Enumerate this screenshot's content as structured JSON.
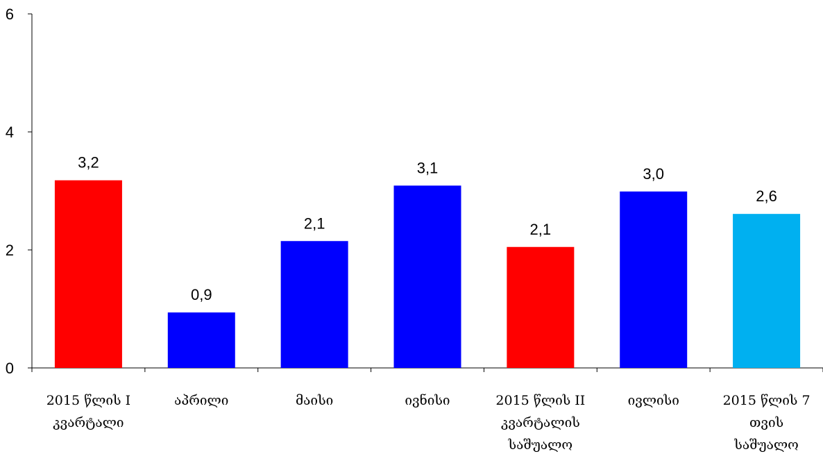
{
  "chart_data": {
    "type": "bar",
    "title": "",
    "xlabel": "",
    "ylabel": "",
    "ylim": [
      0,
      6
    ],
    "yticks": [
      0,
      2,
      4,
      6
    ],
    "grid": false,
    "legend": "none",
    "categories": [
      [
        "2015 წლის I",
        "კვარტალი"
      ],
      [
        "აპრილი"
      ],
      [
        "მაისი"
      ],
      [
        "ივნისი"
      ],
      [
        "2015 წლის II",
        "კვარტალის",
        "საშუალო"
      ],
      [
        "ივლისი"
      ],
      [
        "2015 წლის 7",
        "თვის",
        "საშუალო"
      ]
    ],
    "values": [
      3.18,
      0.94,
      2.15,
      3.09,
      2.05,
      2.99,
      2.61
    ],
    "data_labels": [
      "3,2",
      "0,9",
      "2,1",
      "3,1",
      "2,1",
      "3,0",
      "2,6"
    ],
    "colors": [
      "#ff0000",
      "#0000ff",
      "#0000ff",
      "#0000ff",
      "#ff0000",
      "#0000ff",
      "#00b0f0"
    ]
  }
}
